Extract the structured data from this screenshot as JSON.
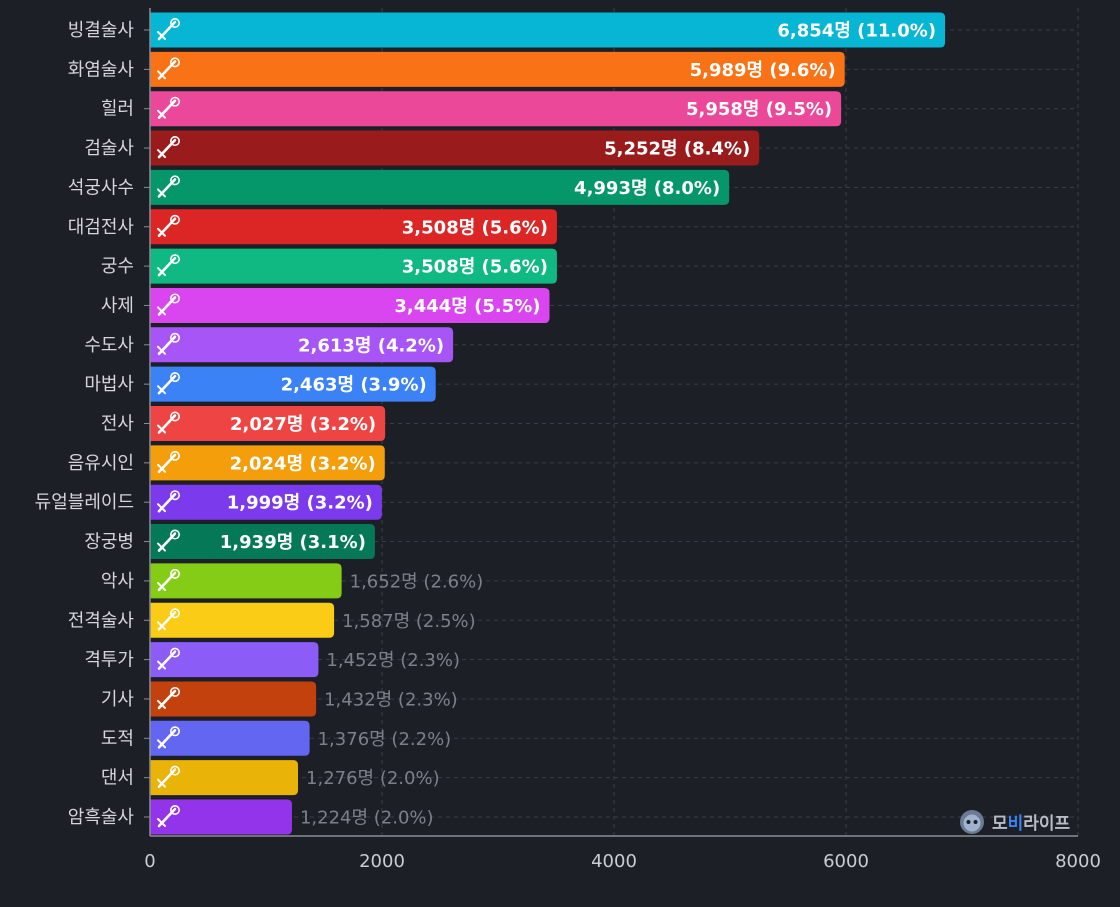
{
  "chart_data": {
    "type": "bar",
    "orientation": "horizontal",
    "title": "",
    "xlabel": "",
    "ylabel": "",
    "xlim": [
      0,
      8000
    ],
    "x_ticks": [
      "0",
      "2000",
      "4000",
      "6000",
      "8000"
    ],
    "grid": true,
    "unit": "명",
    "categories": [
      "빙결술사",
      "화염술사",
      "힐러",
      "검술사",
      "석궁사수",
      "대검전사",
      "궁수",
      "사제",
      "수도사",
      "마법사",
      "전사",
      "음유시인",
      "듀얼블레이드",
      "장궁병",
      "악사",
      "전격술사",
      "격투가",
      "기사",
      "도적",
      "댄서",
      "암흑술사"
    ],
    "values": [
      6854,
      5989,
      5958,
      5252,
      4993,
      3508,
      3508,
      3444,
      2613,
      2463,
      2027,
      2024,
      1999,
      1939,
      1652,
      1587,
      1452,
      1432,
      1376,
      1276,
      1224
    ],
    "percents": [
      "11.0%",
      "9.6%",
      "9.5%",
      "8.4%",
      "8.0%",
      "5.6%",
      "5.6%",
      "5.5%",
      "4.2%",
      "3.9%",
      "3.2%",
      "3.2%",
      "3.2%",
      "3.1%",
      "2.6%",
      "2.5%",
      "2.3%",
      "2.3%",
      "2.2%",
      "2.0%",
      "2.0%"
    ],
    "labels": [
      "6,854명 (11.0%)",
      "5,989명 (9.6%)",
      "5,958명 (9.5%)",
      "5,252명 (8.4%)",
      "4,993명 (8.0%)",
      "3,508명 (5.6%)",
      "3,508명 (5.6%)",
      "3,444명 (5.5%)",
      "2,613명 (4.2%)",
      "2,463명 (3.9%)",
      "2,027명 (3.2%)",
      "2,024명 (3.2%)",
      "1,999명 (3.2%)",
      "1,939명 (3.1%)",
      "1,652명 (2.6%)",
      "1,587명 (2.5%)",
      "1,452명 (2.3%)",
      "1,432명 (2.3%)",
      "1,376명 (2.2%)",
      "1,276명 (2.0%)",
      "1,224명 (2.0%)"
    ],
    "colors": [
      "#06b6d4",
      "#f97316",
      "#ec4899",
      "#991b1b",
      "#059669",
      "#dc2626",
      "#10b981",
      "#d946ef",
      "#a855f7",
      "#3b82f6",
      "#ef4444",
      "#f59e0b",
      "#7c3aed",
      "#047857",
      "#84cc16",
      "#facc15",
      "#8b5cf6",
      "#c2410c",
      "#6366f1",
      "#eab308",
      "#9333ea"
    ],
    "icons": [
      "ice-sword-icon",
      "fire-wand-icon",
      "heal-staff-icon",
      "sword-icon",
      "crossbow-icon",
      "greatsword-icon",
      "bow-icon",
      "priest-icon",
      "monk-icon",
      "magic-wand-icon",
      "warrior-icon",
      "lute-icon",
      "dual-blade-icon",
      "longbow-icon",
      "bard-icon",
      "lightning-icon",
      "fist-icon",
      "knight-icon",
      "dagger-icon",
      "fan-icon",
      "dark-magic-icon"
    ]
  },
  "watermark": {
    "brand_a": "모",
    "brand_b": "비",
    "brand_c": "라이프"
  },
  "colors": {
    "background": "#1d1f26",
    "grid": "#3a3d47",
    "axis": "#8a8d96",
    "tick_text": "#c9ccd3",
    "category_text": "#d4d6dc",
    "label_inside": "#ffffff",
    "label_outside": "#7d8089",
    "watermark_gray": "#b9bcc4",
    "watermark_accent": "#3b82f6"
  }
}
